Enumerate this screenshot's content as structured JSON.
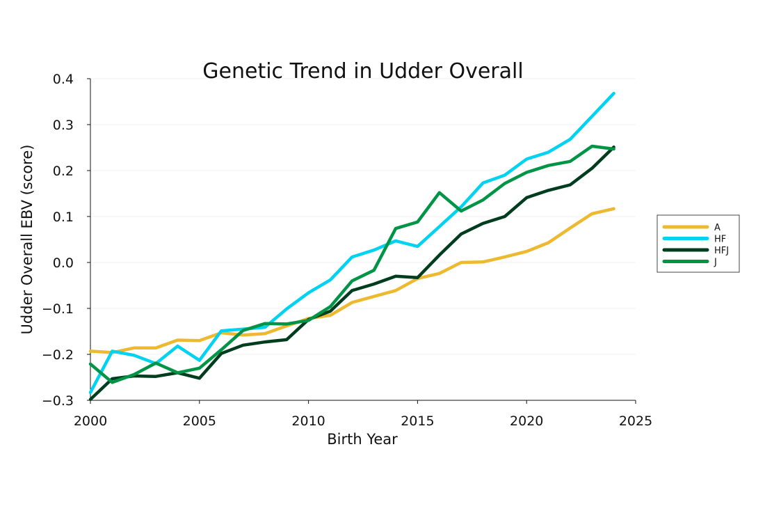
{
  "chart_data": {
    "type": "line",
    "title": "Genetic Trend in Udder Overall",
    "xlabel": "Birth Year",
    "ylabel": "Udder Overall EBV (score)",
    "xlim": [
      2000,
      2025
    ],
    "ylim": [
      -0.3,
      0.4
    ],
    "x_ticks": [
      2000,
      2005,
      2010,
      2015,
      2020,
      2025
    ],
    "x_tick_labels": [
      "2000",
      "2005",
      "2010",
      "2015",
      "2020",
      "2025"
    ],
    "y_ticks": [
      -0.3,
      -0.2,
      -0.1,
      0.0,
      0.1,
      0.2,
      0.3,
      0.4
    ],
    "y_tick_labels": [
      "−0.3",
      "−0.2",
      "−0.1",
      "0.0",
      "0.1",
      "0.2",
      "0.3",
      "0.4"
    ],
    "grid": true,
    "legend_position": "right",
    "x": [
      2000,
      2001,
      2002,
      2003,
      2004,
      2005,
      2006,
      2007,
      2008,
      2009,
      2010,
      2011,
      2012,
      2013,
      2014,
      2015,
      2016,
      2017,
      2018,
      2019,
      2020,
      2021,
      2022,
      2023,
      2024
    ],
    "series": [
      {
        "name": "A",
        "color": "#EDB92E",
        "values": [
          -0.193,
          -0.196,
          -0.186,
          -0.186,
          -0.169,
          -0.17,
          -0.153,
          -0.158,
          -0.155,
          -0.138,
          -0.122,
          -0.115,
          -0.087,
          -0.074,
          -0.061,
          -0.035,
          -0.024,
          0.0,
          0.001,
          0.012,
          0.024,
          0.043,
          0.075,
          0.106,
          0.117
        ]
      },
      {
        "name": "HF",
        "color": "#00D2F2",
        "values": [
          -0.283,
          -0.193,
          -0.202,
          -0.22,
          -0.182,
          -0.213,
          -0.149,
          -0.145,
          -0.141,
          -0.101,
          -0.066,
          -0.038,
          0.012,
          0.027,
          0.047,
          0.035,
          0.078,
          0.121,
          0.173,
          0.19,
          0.225,
          0.24,
          0.268,
          0.318,
          0.368
        ]
      },
      {
        "name": "HFJ",
        "color": "#003D1E",
        "values": [
          -0.298,
          -0.253,
          -0.247,
          -0.248,
          -0.24,
          -0.252,
          -0.198,
          -0.18,
          -0.173,
          -0.168,
          -0.124,
          -0.106,
          -0.061,
          -0.047,
          -0.03,
          -0.033,
          0.016,
          0.062,
          0.085,
          0.1,
          0.141,
          0.157,
          0.169,
          0.205,
          0.251
        ]
      },
      {
        "name": "J",
        "color": "#009447",
        "values": [
          -0.221,
          -0.261,
          -0.244,
          -0.219,
          -0.24,
          -0.23,
          -0.19,
          -0.148,
          -0.133,
          -0.134,
          -0.126,
          -0.096,
          -0.04,
          -0.017,
          0.074,
          0.088,
          0.152,
          0.112,
          0.136,
          0.172,
          0.196,
          0.211,
          0.22,
          0.253,
          0.247
        ]
      }
    ]
  }
}
